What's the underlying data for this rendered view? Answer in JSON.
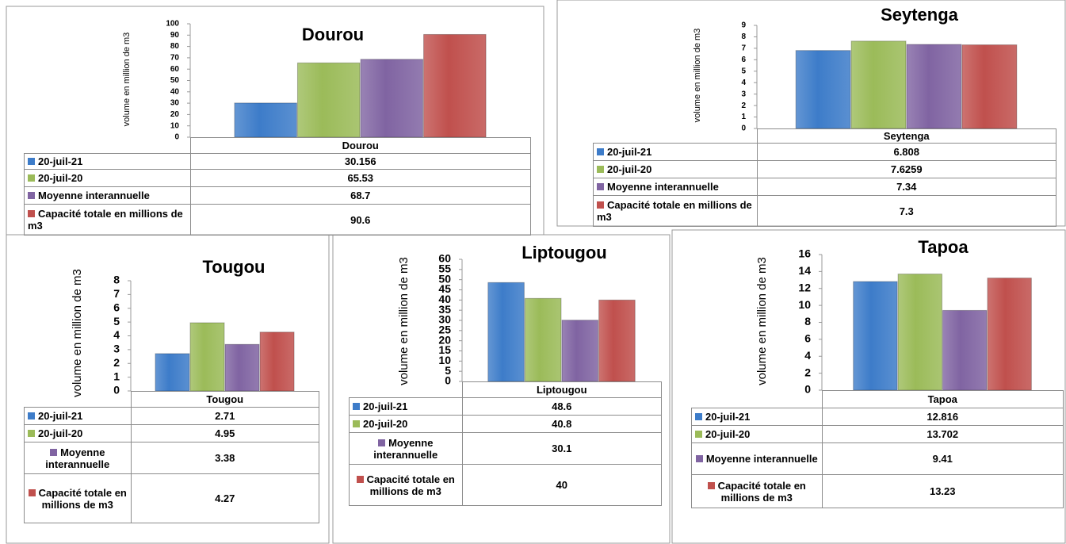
{
  "chart_data": [
    {
      "type": "bar",
      "title": "Dourou",
      "ylabel": "volume en million de m3",
      "categories": [
        "Dourou"
      ],
      "series": [
        {
          "name": "20-juil-21",
          "color": "#3d7cc9",
          "values": [
            30.156
          ]
        },
        {
          "name": "20-juil-20",
          "color": "#9bbb59",
          "values": [
            65.53
          ]
        },
        {
          "name": "Moyenne interannuelle",
          "color": "#8064a2",
          "values": [
            68.7
          ]
        },
        {
          "name": "Capacité totale en millions de m3",
          "color": "#c0504d",
          "values": [
            90.6
          ]
        }
      ],
      "ylim": [
        0,
        100
      ],
      "yticks": [
        0,
        10,
        20,
        30,
        40,
        50,
        60,
        70,
        80,
        90,
        100
      ]
    },
    {
      "type": "bar",
      "title": "Seytenga",
      "ylabel": "volume en million de m3",
      "categories": [
        "Seytenga"
      ],
      "series": [
        {
          "name": "20-juil-21",
          "color": "#3d7cc9",
          "values": [
            6.808
          ]
        },
        {
          "name": "20-juil-20",
          "color": "#9bbb59",
          "values": [
            7.6259
          ]
        },
        {
          "name": "Moyenne interannuelle",
          "color": "#8064a2",
          "values": [
            7.34
          ]
        },
        {
          "name": "Capacité totale en millions de m3",
          "color": "#c0504d",
          "values": [
            7.3
          ]
        }
      ],
      "ylim": [
        0,
        9
      ],
      "yticks": [
        0,
        1,
        2,
        3,
        4,
        5,
        6,
        7,
        8,
        9
      ]
    },
    {
      "type": "bar",
      "title": "Tougou",
      "ylabel": "volume en million de m3",
      "categories": [
        "Tougou"
      ],
      "series": [
        {
          "name": "20-juil-21",
          "color": "#3d7cc9",
          "values": [
            2.71
          ]
        },
        {
          "name": "20-juil-20",
          "color": "#9bbb59",
          "values": [
            4.95
          ]
        },
        {
          "name": "Moyenne interannuelle",
          "color": "#8064a2",
          "values": [
            3.38
          ]
        },
        {
          "name": "Capacité totale en millions de m3",
          "color": "#c0504d",
          "values": [
            4.27
          ]
        }
      ],
      "ylim": [
        0,
        8
      ],
      "yticks": [
        0,
        1,
        2,
        3,
        4,
        5,
        6,
        7,
        8
      ]
    },
    {
      "type": "bar",
      "title": "Liptougou",
      "ylabel": "volume en million de m3",
      "categories": [
        "Liptougou"
      ],
      "series": [
        {
          "name": "20-juil-21",
          "color": "#3d7cc9",
          "values": [
            48.6
          ]
        },
        {
          "name": "20-juil-20",
          "color": "#9bbb59",
          "values": [
            40.8
          ]
        },
        {
          "name": "Moyenne interannuelle",
          "color": "#8064a2",
          "values": [
            30.1
          ]
        },
        {
          "name": "Capacité totale en millions de m3",
          "color": "#c0504d",
          "values": [
            40
          ]
        }
      ],
      "ylim": [
        0,
        60
      ],
      "yticks": [
        0,
        5,
        10,
        15,
        20,
        25,
        30,
        35,
        40,
        45,
        50,
        55,
        60
      ]
    },
    {
      "type": "bar",
      "title": "Tapoa",
      "ylabel": "volume en million de m3",
      "categories": [
        "Tapoa"
      ],
      "series": [
        {
          "name": "20-juil-21",
          "color": "#3d7cc9",
          "values": [
            12.816
          ]
        },
        {
          "name": "20-juil-20",
          "color": "#9bbb59",
          "values": [
            13.702
          ]
        },
        {
          "name": "Moyenne interannuelle",
          "color": "#8064a2",
          "values": [
            9.41
          ]
        },
        {
          "name": "Capacité totale en millions de m3",
          "color": "#c0504d",
          "values": [
            13.23
          ]
        }
      ],
      "ylim": [
        0,
        16
      ],
      "yticks": [
        0,
        2,
        4,
        6,
        8,
        10,
        12,
        14,
        16
      ]
    }
  ]
}
